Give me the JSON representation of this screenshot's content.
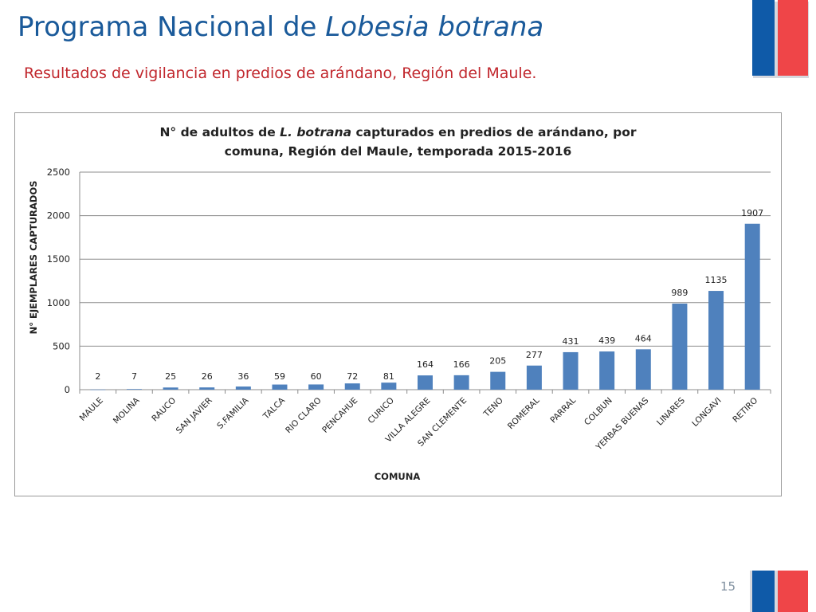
{
  "slide": {
    "title_main": "Programa Nacional de ",
    "title_italic": "Lobesia botrana",
    "subtitle": "Resultados de vigilancia en predios de arándano, Región del Maule.",
    "page_number": "15"
  },
  "colors": {
    "title": "#1a5a9a",
    "subtitle": "#c1272d",
    "bar": "#4f81bd",
    "flag_blue": "#0f5aa8",
    "flag_red": "#ef4548"
  },
  "chart_data": {
    "type": "bar",
    "title_part1": "N° de adultos de ",
    "title_italic": "L. botrana",
    "title_part2": " capturados en predios de arándano, por",
    "title_line2": "comuna, Región del Maule, temporada 2015-2016",
    "xlabel": "COMUNA",
    "ylabel": "N° EJEMPLARES CAPTURADOS",
    "ylim": [
      0,
      2500
    ],
    "yticks": [
      0,
      500,
      1000,
      1500,
      2000,
      2500
    ],
    "grid": true,
    "legend": "none",
    "categories": [
      "MAULE",
      "MOLINA",
      "RAUCO",
      "SAN JAVIER",
      "S.FAMILIA",
      "TALCA",
      "RIO CLARO",
      "PENCAHUE",
      "CURICO",
      "VILLA ALEGRE",
      "SAN CLEMENTE",
      "TENO",
      "ROMERAL",
      "PARRAL",
      "COLBUN",
      "YERBAS BUENAS",
      "LINARES",
      "LONGAVI",
      "RETIRO"
    ],
    "values": [
      2,
      7,
      25,
      26,
      36,
      59,
      60,
      72,
      81,
      164,
      166,
      205,
      277,
      431,
      439,
      464,
      989,
      1135,
      1907
    ]
  }
}
